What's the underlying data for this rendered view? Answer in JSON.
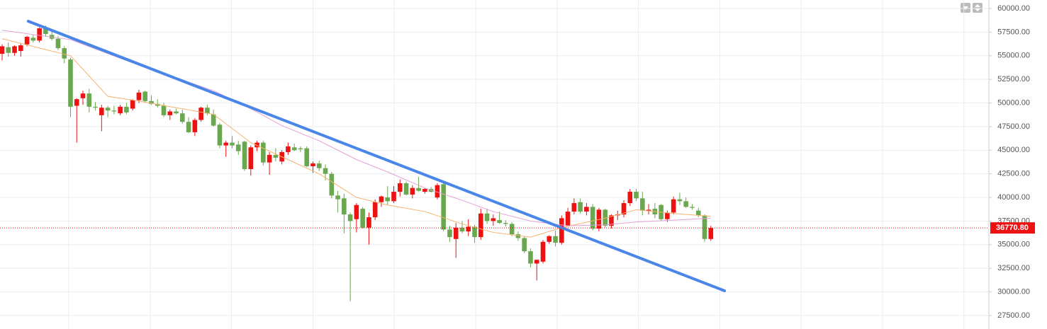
{
  "chart_data": {
    "type": "candlestick",
    "open": [
      55200,
      55900,
      55300,
      55500,
      56200,
      56900,
      56600,
      57900,
      57200,
      56800,
      55800,
      54600,
      49700,
      50500,
      51000,
      49600,
      48700,
      49500,
      49200,
      48900,
      49600,
      49400,
      50300,
      51200,
      50200,
      49900,
      49700,
      48700,
      49100,
      48900,
      48000,
      46900,
      48200,
      49500,
      48800,
      47700,
      45500,
      45800,
      45600,
      45900,
      43000,
      45300,
      45800,
      43700,
      44500,
      43800,
      44800,
      45300,
      45200,
      45200,
      43300,
      43600,
      43100,
      42500,
      40200,
      39900,
      38200,
      37700,
      38800,
      36800,
      37900,
      39500,
      40000,
      39600,
      40600,
      41500,
      40300,
      41000,
      40600,
      40900,
      40000,
      41400,
      36600,
      35600,
      36800,
      36400,
      36900,
      35800,
      38300,
      37500,
      37600,
      37300,
      37200,
      36100,
      35700,
      34300,
      33000,
      33200,
      35300,
      35900,
      35200,
      37000,
      38500,
      39500,
      38500,
      39000,
      36700,
      38700,
      37000,
      38100,
      38200,
      39400,
      40600,
      39900,
      38600,
      38800,
      39200,
      37700,
      38400,
      39800,
      39600,
      39000,
      38600,
      38100,
      35600
    ],
    "high": [
      56200,
      56400,
      56100,
      56300,
      57100,
      57200,
      58000,
      58200,
      57800,
      57100,
      56000,
      54800,
      50500,
      51300,
      51500,
      50100,
      49800,
      49700,
      49700,
      49800,
      50000,
      50400,
      51400,
      51300,
      50800,
      50400,
      50000,
      49300,
      49400,
      49300,
      48500,
      48400,
      49600,
      49800,
      49300,
      47900,
      46000,
      46500,
      46000,
      46000,
      45500,
      46000,
      46000,
      44800,
      45200,
      45000,
      45800,
      45700,
      45400,
      45400,
      43800,
      43900,
      43500,
      42700,
      40700,
      40400,
      38400,
      39400,
      39000,
      38400,
      39800,
      40200,
      41200,
      41200,
      41900,
      41700,
      41300,
      42200,
      41000,
      41100,
      41500,
      41800,
      37000,
      37300,
      37500,
      37700,
      37100,
      38800,
      38800,
      38200,
      38500,
      37600,
      37400,
      36400,
      35900,
      34600,
      33400,
      35500,
      36000,
      36500,
      38100,
      38900,
      39900,
      39900,
      39400,
      39300,
      38900,
      38800,
      38200,
      38600,
      39700,
      40900,
      40900,
      40600,
      39300,
      39400,
      39300,
      38600,
      40100,
      40500,
      40000,
      39300,
      38900,
      38200,
      37000
    ],
    "low": [
      54500,
      54900,
      55000,
      54900,
      56000,
      56400,
      56400,
      57000,
      56600,
      55600,
      54200,
      48500,
      45800,
      49800,
      49000,
      49200,
      47000,
      48500,
      48800,
      48700,
      48800,
      49200,
      50000,
      50100,
      49800,
      49500,
      48500,
      48200,
      48800,
      47800,
      46800,
      46500,
      48000,
      48700,
      47500,
      45200,
      44300,
      45200,
      44500,
      42800,
      42300,
      44900,
      43400,
      42400,
      43800,
      43500,
      44500,
      44900,
      44800,
      43200,
      42600,
      42800,
      41800,
      39900,
      38400,
      36200,
      29000,
      36300,
      36700,
      35000,
      37600,
      39000,
      39200,
      39400,
      40100,
      40200,
      39900,
      40600,
      40400,
      40500,
      39800,
      36400,
      35300,
      33600,
      36200,
      35900,
      35200,
      35500,
      37200,
      37000,
      37200,
      36900,
      35900,
      35400,
      34100,
      32600,
      31200,
      33000,
      35100,
      34800,
      35000,
      36900,
      38200,
      38300,
      38100,
      36500,
      36400,
      36800,
      36700,
      37600,
      37900,
      39100,
      39600,
      38100,
      38200,
      37800,
      37500,
      37400,
      38200,
      39200,
      38900,
      38700,
      37900,
      35300,
      35400
    ],
    "close": [
      56000,
      55300,
      56000,
      56100,
      57000,
      56600,
      57900,
      57300,
      56800,
      55800,
      54700,
      49600,
      50400,
      51000,
      49600,
      49500,
      49500,
      49200,
      49100,
      49600,
      49000,
      50300,
      51100,
      50200,
      49900,
      49700,
      48700,
      49100,
      48900,
      48000,
      46900,
      48200,
      49500,
      48900,
      47600,
      45500,
      45800,
      45500,
      44900,
      43000,
      45300,
      45800,
      43700,
      44500,
      44200,
      44800,
      45400,
      45000,
      45100,
      43300,
      43600,
      43100,
      42500,
      40200,
      39800,
      38200,
      37500,
      39200,
      36800,
      37900,
      39500,
      40100,
      39600,
      40600,
      41500,
      40300,
      41000,
      40700,
      40900,
      40600,
      41300,
      36600,
      35800,
      36800,
      36400,
      36900,
      35800,
      38300,
      37500,
      37800,
      37300,
      37200,
      36100,
      35700,
      34300,
      33000,
      33400,
      35300,
      35900,
      35200,
      37800,
      38500,
      39400,
      38500,
      39000,
      36700,
      38700,
      37000,
      38100,
      38200,
      39400,
      40600,
      39900,
      38600,
      38700,
      38200,
      37700,
      38400,
      39800,
      39600,
      39000,
      38900,
      38100,
      35600,
      36770.8
    ],
    "up_color": "#ee1111",
    "down_color": "#6aa84f",
    "lines": [
      {
        "color": "#f6b26b",
        "x": [
          0,
          11,
          17,
          22,
          28,
          34,
          40,
          45,
          51,
          57,
          62,
          68,
          74,
          79,
          85,
          90,
          97,
          102,
          108,
          114
        ],
        "values": [
          56800,
          55000,
          50700,
          50200,
          49500,
          48800,
          45800,
          44300,
          42500,
          40000,
          39200,
          38500,
          37200,
          36300,
          35800,
          36800,
          37800,
          38700,
          38300,
          38000
        ]
      },
      {
        "color": "#e69fd8",
        "x": [
          0,
          11,
          22,
          34,
          40,
          45,
          51,
          57,
          62,
          68,
          74,
          79,
          85,
          91,
          97,
          102,
          108,
          114
        ],
        "values": [
          57700,
          56700,
          54000,
          51300,
          49400,
          47600,
          46000,
          44000,
          42700,
          41000,
          39700,
          38500,
          37500,
          37000,
          37100,
          37400,
          37600,
          37800
        ]
      }
    ],
    "trendline": {
      "color": "#4a86e8",
      "x": [
        4.2,
        116.2
      ],
      "values": [
        58652,
        30117
      ]
    },
    "last_price": {
      "value": 36770.8,
      "label": "36770.80"
    },
    "ylim": [
      26072,
      60899
    ],
    "yticks": [
      {
        "value": 27500,
        "label": "27500.00"
      },
      {
        "value": 30000,
        "label": "30000.00"
      },
      {
        "value": 32500,
        "label": "32500.00"
      },
      {
        "value": 35000,
        "label": "35000.00"
      },
      {
        "value": 37500,
        "label": "37500.00"
      },
      {
        "value": 40000,
        "label": "40000.00"
      },
      {
        "value": 42500,
        "label": "42500.00"
      },
      {
        "value": 45000,
        "label": "45000.00"
      },
      {
        "value": 47500,
        "label": "47500.00"
      },
      {
        "value": 50000,
        "label": "50000.00"
      },
      {
        "value": 52500,
        "label": "52500.00"
      },
      {
        "value": 55000,
        "label": "55000.00"
      },
      {
        "value": 57500,
        "label": "57500.00"
      },
      {
        "value": 60000,
        "label": "60000.00"
      }
    ],
    "grid": true
  }
}
